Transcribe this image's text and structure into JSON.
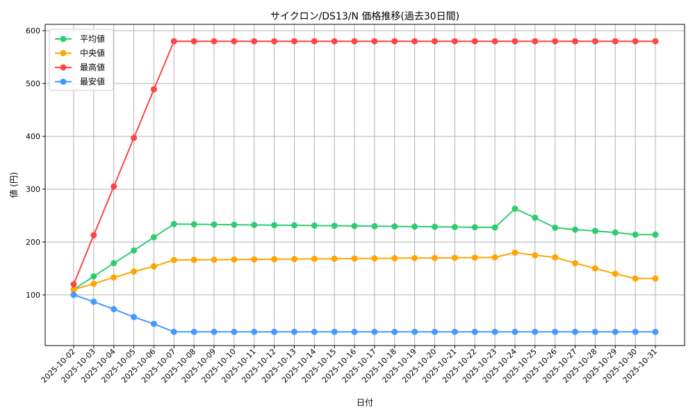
{
  "chart_data": {
    "type": "line",
    "title": "サイクロン/DS13/N 価格推移(過去30日間)",
    "xlabel": "日付",
    "ylabel": "値 (円)",
    "ylim": [
      4,
      612
    ],
    "yticks": [
      100,
      200,
      300,
      400,
      500,
      600
    ],
    "grid": true,
    "legend_position": "top-left",
    "x": [
      "2025-10-02",
      "2025-10-03",
      "2025-10-04",
      "2025-10-05",
      "2025-10-06",
      "2025-10-07",
      "2025-10-08",
      "2025-10-09",
      "2025-10-10",
      "2025-10-11",
      "2025-10-12",
      "2025-10-13",
      "2025-10-14",
      "2025-10-15",
      "2025-10-16",
      "2025-10-17",
      "2025-10-18",
      "2025-10-19",
      "2025-10-20",
      "2025-10-21",
      "2025-10-22",
      "2025-10-23",
      "2025-10-24",
      "2025-10-25",
      "2025-10-26",
      "2025-10-27",
      "2025-10-28",
      "2025-10-29",
      "2025-10-30",
      "2025-10-31"
    ],
    "series": [
      {
        "name": "平均値",
        "color": "#2ecc71",
        "values": [
          110,
          135,
          160,
          184,
          209,
          234,
          233.6,
          233.2,
          232.8,
          232.4,
          232,
          231.6,
          231.2,
          230.8,
          230.4,
          230,
          229.6,
          229.2,
          228.8,
          228.4,
          228,
          227.6,
          263,
          246,
          227,
          223.6,
          221,
          218,
          214,
          214
        ]
      },
      {
        "name": "中央値",
        "color": "#ffa500",
        "values": [
          110,
          121,
          133,
          144,
          154,
          166,
          166.3,
          166.6,
          166.9,
          167.2,
          167.5,
          167.8,
          168.1,
          168.4,
          168.7,
          169,
          169.3,
          169.6,
          169.9,
          170.2,
          170.5,
          171,
          180,
          175,
          171,
          160,
          150,
          140,
          131,
          131
        ]
      },
      {
        "name": "最高値",
        "color": "#ff4444",
        "values": [
          120,
          213,
          305,
          397,
          489,
          580,
          580,
          580,
          580,
          580,
          580,
          580,
          580,
          580,
          580,
          580,
          580,
          580,
          580,
          580,
          580,
          580,
          580,
          580,
          580,
          580,
          580,
          580,
          580,
          580
        ]
      },
      {
        "name": "最安値",
        "color": "#4499ff",
        "values": [
          100,
          87,
          73,
          58,
          45,
          30,
          30,
          30,
          30,
          30,
          30,
          30,
          30,
          30,
          30,
          30,
          30,
          30,
          30,
          30,
          30,
          30,
          30,
          30,
          30,
          30,
          30,
          30,
          30,
          30
        ]
      }
    ]
  }
}
